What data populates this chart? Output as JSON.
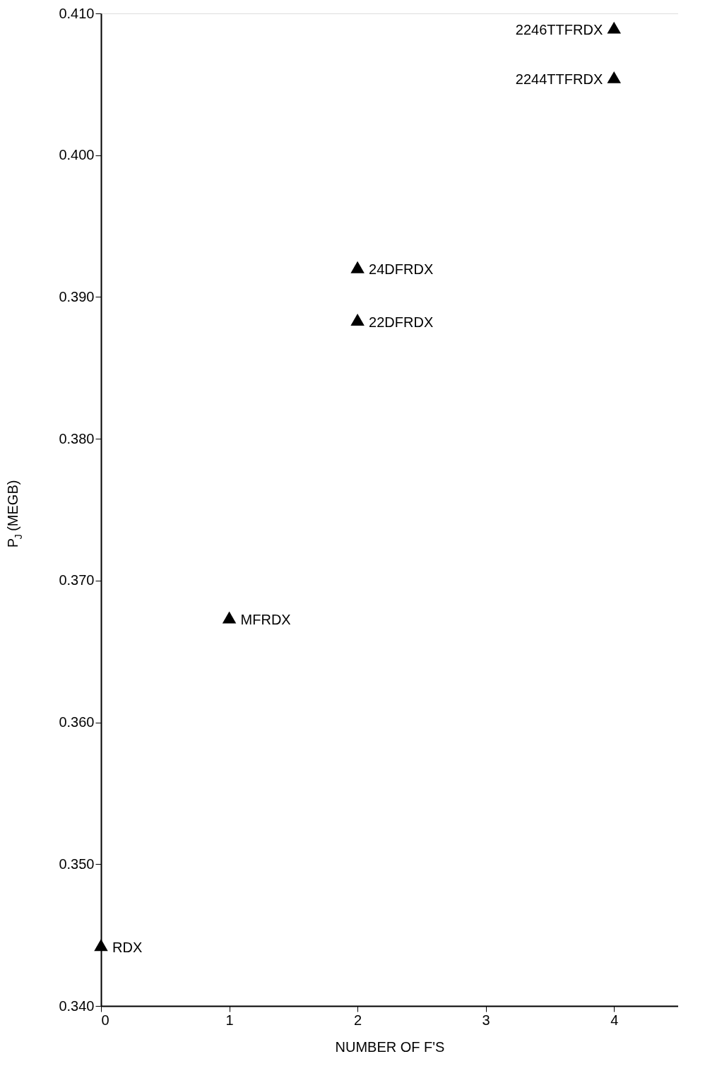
{
  "chart_data": {
    "type": "scatter",
    "xlabel": "NUMBER OF F'S",
    "ylabel": "P$_{J}$ (MEGB)",
    "x": [
      0,
      1,
      2,
      2,
      4,
      4
    ],
    "series": [
      {
        "color": "#000000",
        "values": [
          0.3443,
          0.3674,
          0.3921,
          0.3884,
          0.409,
          0.4055
        ]
      }
    ],
    "marker": "triangle",
    "grid": false,
    "xlim": [
      0,
      4.5
    ],
    "xticks": [
      0,
      1,
      2,
      3,
      4
    ],
    "ylim": [
      0.34,
      0.41
    ],
    "yticks": [
      {
        "value": 0.34,
        "label": "0.340"
      },
      {
        "value": 0.35,
        "label": "0.350"
      },
      {
        "value": 0.36,
        "label": "0.360"
      },
      {
        "value": 0.37,
        "label": "0.370"
      },
      {
        "value": 0.38,
        "label": "0.380"
      },
      {
        "value": 0.39,
        "label": "0.390"
      },
      {
        "value": 0.4,
        "label": "0.400"
      },
      {
        "value": 0.41,
        "label": "0.410"
      }
    ],
    "annotations": [
      {
        "text": "RDX",
        "x": 0,
        "y": 0.3443
      },
      {
        "text": "MFRDX",
        "x": 1,
        "y": 0.3674
      },
      {
        "text": "24DFRDX",
        "x": 2,
        "y": 0.3921
      },
      {
        "text": "22DFRDX",
        "x": 2,
        "y": 0.3884
      },
      {
        "text": "2246TTFRDX",
        "x": 4,
        "y": 0.409
      },
      {
        "text": "2244TTFRDX",
        "x": 4,
        "y": 0.4055
      }
    ]
  }
}
